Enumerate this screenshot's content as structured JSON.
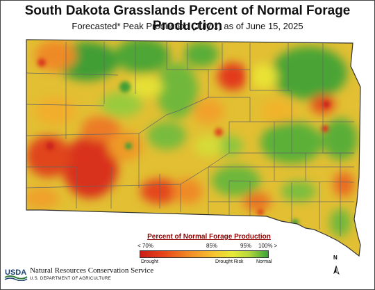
{
  "map": {
    "title": "South Dakota Grasslands Percent of Normal Forage Production",
    "subtitle": "Forecasted* Peak Production (July 1) as of June 15, 2025",
    "colors": {
      "drought": "#c91d18",
      "drought_risk": "#f5c531",
      "normal": "#3aa33a",
      "boundary": "#555555"
    }
  },
  "legend": {
    "title": "Percent of Normal Forage Production",
    "ticks": [
      "< 70%",
      "85%",
      "95%",
      "100% >"
    ],
    "categories": [
      "Drought",
      "Drought Risk",
      "Normal"
    ]
  },
  "footer": {
    "usda_logo_text": "USDA",
    "agency": "Natural Resources Conservation Service",
    "department": "U.S. DEPARTMENT OF AGRICULTURE",
    "north_label": "N"
  }
}
